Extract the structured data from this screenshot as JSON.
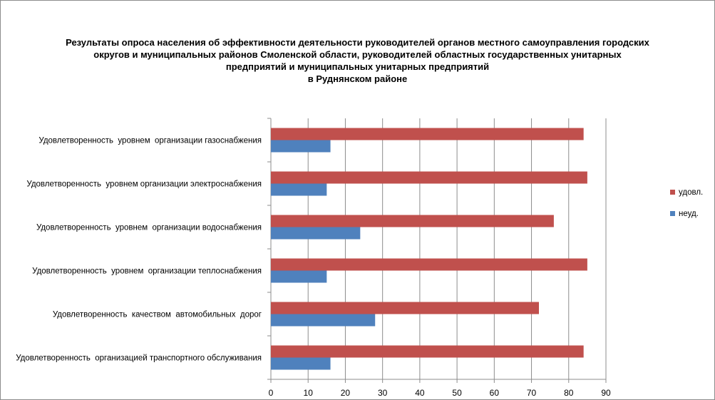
{
  "chart_data": {
    "type": "bar",
    "orientation": "horizontal",
    "title_lines": [
      "Результаты опроса населения об эффективности деятельности руководителей органов местного самоуправления городских",
      "округов и муниципальных районов Смоленской области, руководителей областных государственных унитарных",
      "предприятий и муниципальных унитарных предприятий",
      "в Руднянском районе"
    ],
    "categories": [
      "Удовлетворенность  уровнем  организации газоснабжения",
      "Удовлетворенность  уровнем организации электроснабжения",
      "Удовлетворенность  уровнем  организации водоснабжения",
      "Удовлетворенность  уровнем  организации теплоснабжения",
      "Удовлетворенность  качеством  автомобильных  дорог",
      "Удовлетворенность  организацией транспортного обслуживания"
    ],
    "series": [
      {
        "name": "удовл.",
        "color": "#c0504d",
        "values": [
          84,
          85,
          76,
          85,
          72,
          84
        ]
      },
      {
        "name": "неуд.",
        "color": "#4f81bd",
        "values": [
          16,
          15,
          24,
          15,
          28,
          16
        ]
      }
    ],
    "xlim": [
      0,
      90
    ],
    "xticks": [
      0,
      10,
      20,
      30,
      40,
      50,
      60,
      70,
      80,
      90
    ],
    "grid": true,
    "legend_position": "right"
  }
}
